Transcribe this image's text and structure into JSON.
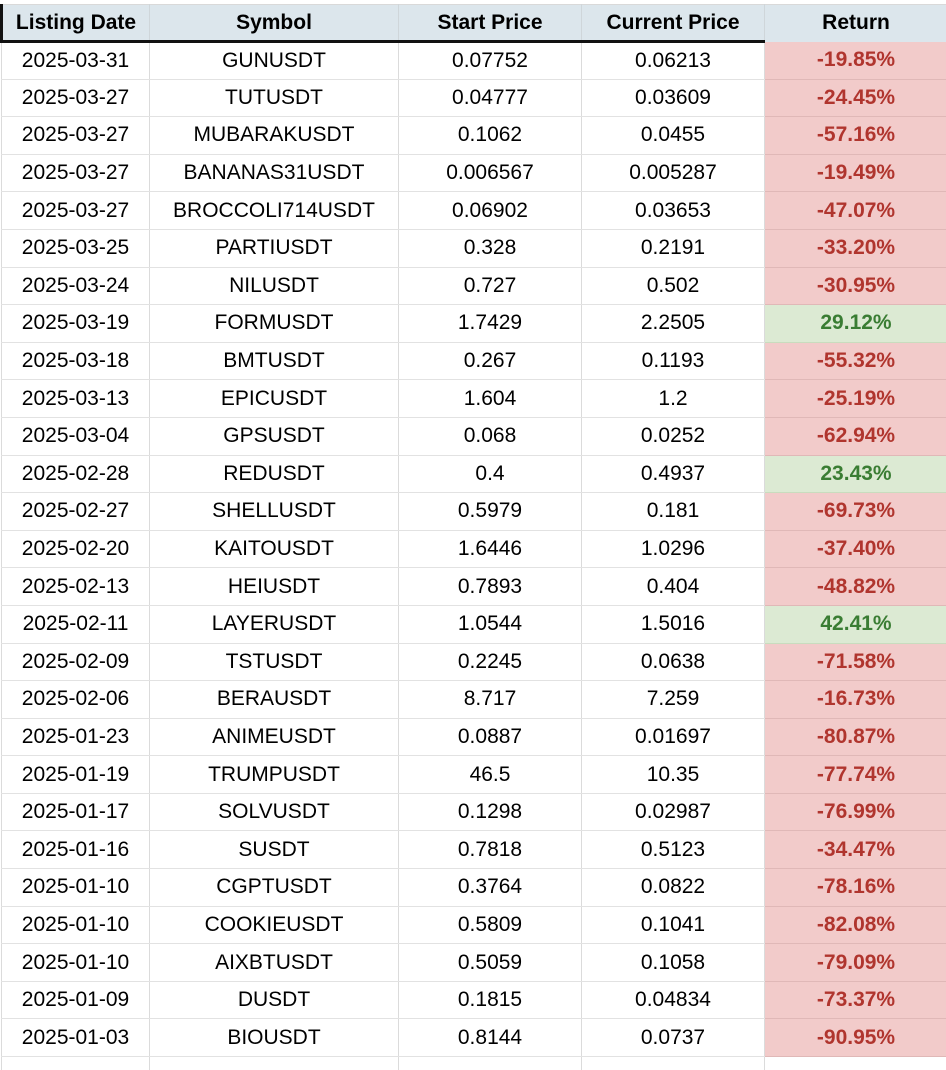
{
  "chart_data": {
    "type": "table",
    "columns": [
      "Listing Date",
      "Symbol",
      "Start Price",
      "Current Price",
      "Return"
    ],
    "rows": [
      {
        "date": "2025-03-31",
        "symbol": "GUNUSDT",
        "start": "0.07752",
        "current": "0.06213",
        "return": "-19.85%",
        "direction": "negative"
      },
      {
        "date": "2025-03-27",
        "symbol": "TUTUSDT",
        "start": "0.04777",
        "current": "0.03609",
        "return": "-24.45%",
        "direction": "negative"
      },
      {
        "date": "2025-03-27",
        "symbol": "MUBARAKUSDT",
        "start": "0.1062",
        "current": "0.0455",
        "return": "-57.16%",
        "direction": "negative"
      },
      {
        "date": "2025-03-27",
        "symbol": "BANANAS31USDT",
        "start": "0.006567",
        "current": "0.005287",
        "return": "-19.49%",
        "direction": "negative"
      },
      {
        "date": "2025-03-27",
        "symbol": "BROCCOLI714USDT",
        "start": "0.06902",
        "current": "0.03653",
        "return": "-47.07%",
        "direction": "negative"
      },
      {
        "date": "2025-03-25",
        "symbol": "PARTIUSDT",
        "start": "0.328",
        "current": "0.2191",
        "return": "-33.20%",
        "direction": "negative"
      },
      {
        "date": "2025-03-24",
        "symbol": "NILUSDT",
        "start": "0.727",
        "current": "0.502",
        "return": "-30.95%",
        "direction": "negative"
      },
      {
        "date": "2025-03-19",
        "symbol": "FORMUSDT",
        "start": "1.7429",
        "current": "2.2505",
        "return": "29.12%",
        "direction": "positive"
      },
      {
        "date": "2025-03-18",
        "symbol": "BMTUSDT",
        "start": "0.267",
        "current": "0.1193",
        "return": "-55.32%",
        "direction": "negative"
      },
      {
        "date": "2025-03-13",
        "symbol": "EPICUSDT",
        "start": "1.604",
        "current": "1.2",
        "return": "-25.19%",
        "direction": "negative"
      },
      {
        "date": "2025-03-04",
        "symbol": "GPSUSDT",
        "start": "0.068",
        "current": "0.0252",
        "return": "-62.94%",
        "direction": "negative"
      },
      {
        "date": "2025-02-28",
        "symbol": "REDUSDT",
        "start": "0.4",
        "current": "0.4937",
        "return": "23.43%",
        "direction": "positive"
      },
      {
        "date": "2025-02-27",
        "symbol": "SHELLUSDT",
        "start": "0.5979",
        "current": "0.181",
        "return": "-69.73%",
        "direction": "negative"
      },
      {
        "date": "2025-02-20",
        "symbol": "KAITOUSDT",
        "start": "1.6446",
        "current": "1.0296",
        "return": "-37.40%",
        "direction": "negative"
      },
      {
        "date": "2025-02-13",
        "symbol": "HEIUSDT",
        "start": "0.7893",
        "current": "0.404",
        "return": "-48.82%",
        "direction": "negative"
      },
      {
        "date": "2025-02-11",
        "symbol": "LAYERUSDT",
        "start": "1.0544",
        "current": "1.5016",
        "return": "42.41%",
        "direction": "positive"
      },
      {
        "date": "2025-02-09",
        "symbol": "TSTUSDT",
        "start": "0.2245",
        "current": "0.0638",
        "return": "-71.58%",
        "direction": "negative"
      },
      {
        "date": "2025-02-06",
        "symbol": "BERAUSDT",
        "start": "8.717",
        "current": "7.259",
        "return": "-16.73%",
        "direction": "negative"
      },
      {
        "date": "2025-01-23",
        "symbol": "ANIMEUSDT",
        "start": "0.0887",
        "current": "0.01697",
        "return": "-80.87%",
        "direction": "negative"
      },
      {
        "date": "2025-01-19",
        "symbol": "TRUMPUSDT",
        "start": "46.5",
        "current": "10.35",
        "return": "-77.74%",
        "direction": "negative"
      },
      {
        "date": "2025-01-17",
        "symbol": "SOLVUSDT",
        "start": "0.1298",
        "current": "0.02987",
        "return": "-76.99%",
        "direction": "negative"
      },
      {
        "date": "2025-01-16",
        "symbol": "SUSDT",
        "start": "0.7818",
        "current": "0.5123",
        "return": "-34.47%",
        "direction": "negative"
      },
      {
        "date": "2025-01-10",
        "symbol": "CGPTUSDT",
        "start": "0.3764",
        "current": "0.0822",
        "return": "-78.16%",
        "direction": "negative"
      },
      {
        "date": "2025-01-10",
        "symbol": "COOKIEUSDT",
        "start": "0.5809",
        "current": "0.1041",
        "return": "-82.08%",
        "direction": "negative"
      },
      {
        "date": "2025-01-10",
        "symbol": "AIXBTUSDT",
        "start": "0.5059",
        "current": "0.1058",
        "return": "-79.09%",
        "direction": "negative"
      },
      {
        "date": "2025-01-09",
        "symbol": "DUSDT",
        "start": "0.1815",
        "current": "0.04834",
        "return": "-73.37%",
        "direction": "negative"
      },
      {
        "date": "2025-01-03",
        "symbol": "BIOUSDT",
        "start": "0.8144",
        "current": "0.0737",
        "return": "-90.95%",
        "direction": "negative"
      }
    ]
  },
  "colors": {
    "header_bg": "#dce6ec",
    "negative_bg": "#f2cbca",
    "negative_text": "#b0352e",
    "positive_bg": "#dcead3",
    "positive_text": "#3a7d33",
    "header_underline": "#111111",
    "grid_line": "#dbdbdb"
  }
}
